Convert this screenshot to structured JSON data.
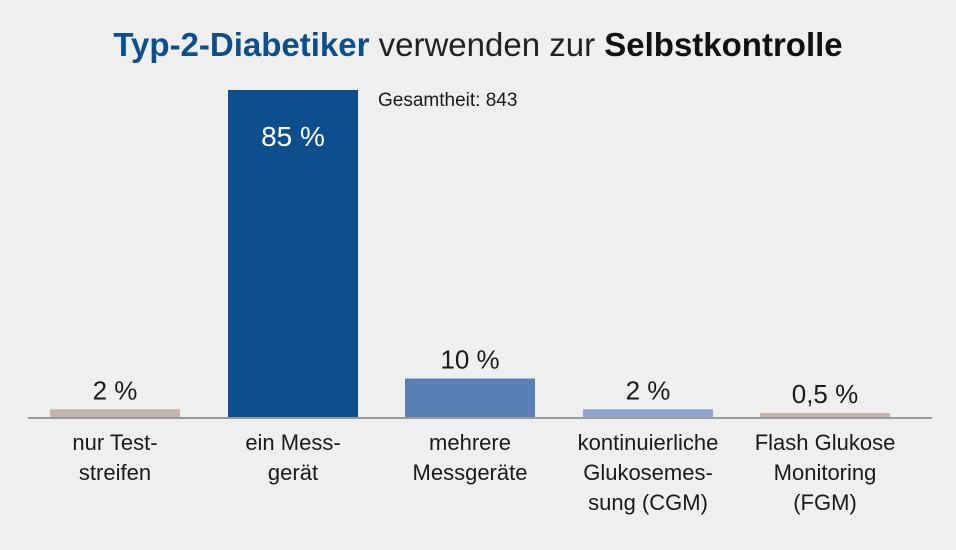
{
  "chart_data": {
    "type": "bar",
    "title": {
      "part1": "Typ-2-Diabetiker",
      "part2": " verwenden zur ",
      "part3": "Selbstkontrolle"
    },
    "annotation": "Gesamtheit: 843",
    "categories": [
      [
        "nur Test-",
        "streifen"
      ],
      [
        "ein Mess-",
        "gerät"
      ],
      [
        "mehrere",
        "Messgeräte"
      ],
      [
        "kontinuierliche",
        "Glukosemes-",
        "sung (CGM)"
      ],
      [
        "Flash Glukose",
        "Monitoring",
        "(FGM)"
      ]
    ],
    "values": [
      2,
      85,
      10,
      2,
      0.5
    ],
    "value_labels": [
      "2 %",
      "85 %",
      "10 %",
      "2 %",
      "0,5 %"
    ],
    "colors": [
      "#c3b4ab",
      "#0d4f8e",
      "#5a7fb4",
      "#8da6d1",
      "#c3b4ab"
    ],
    "ylim": [
      0,
      85
    ],
    "grid": false,
    "legend": "none"
  }
}
